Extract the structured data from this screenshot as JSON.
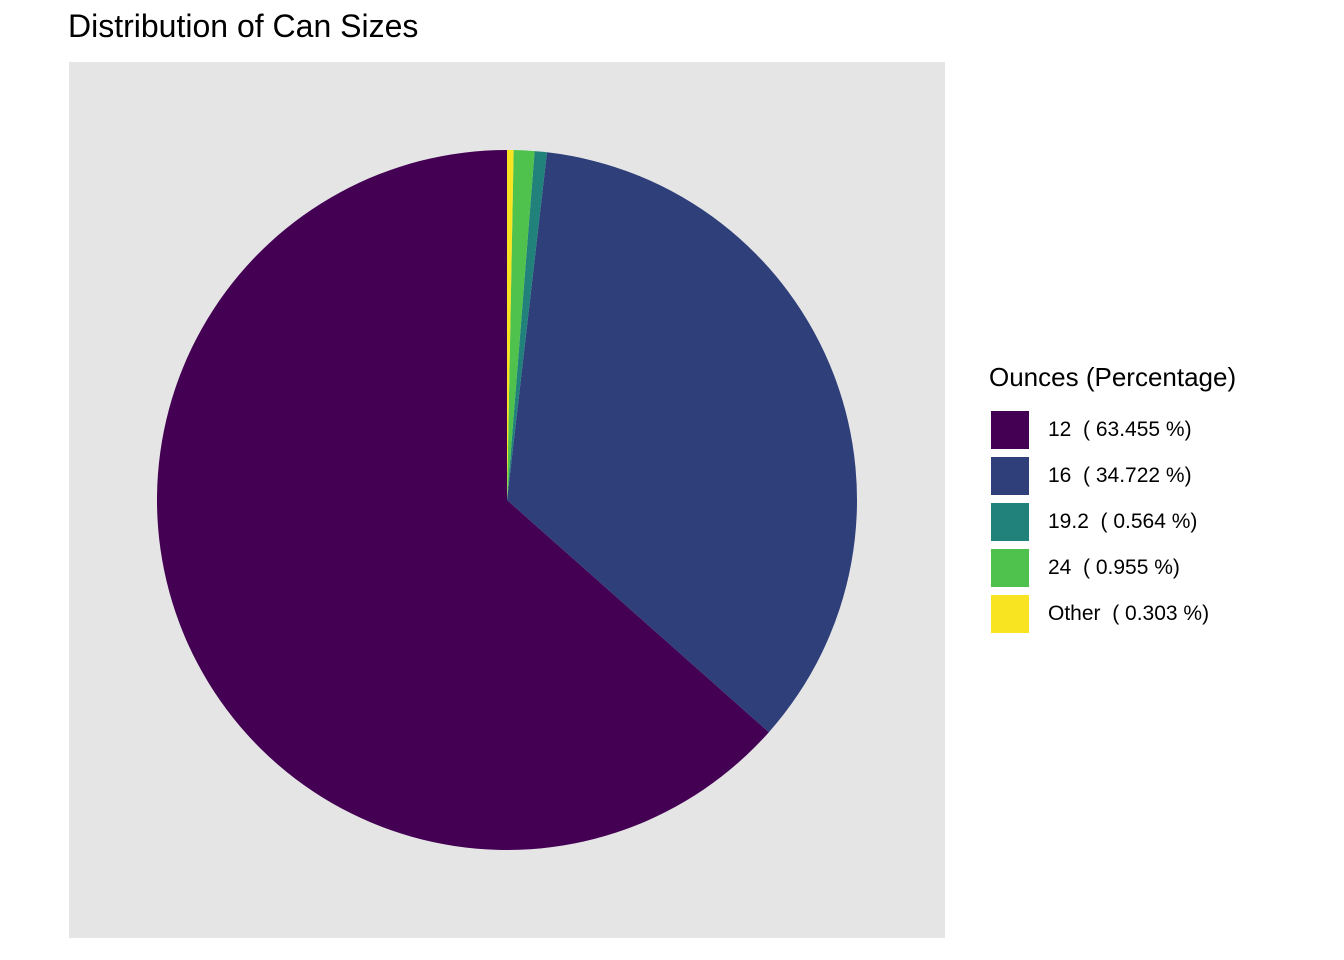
{
  "chart_data": {
    "type": "pie",
    "title": "Distribution of Can Sizes",
    "legend": {
      "title": "Ounces (Percentage)",
      "position": "right"
    },
    "slices": [
      {
        "label": "12  ( 63.455 %)",
        "category": "12",
        "value": 63.455,
        "color": "#440154"
      },
      {
        "label": "16  ( 34.722 %)",
        "category": "16",
        "value": 34.722,
        "color": "#2e3f79"
      },
      {
        "label": "19.2  ( 0.564 %)",
        "category": "19.2",
        "value": 0.564,
        "color": "#21817b"
      },
      {
        "label": "24  ( 0.955 %)",
        "category": "24",
        "value": 0.955,
        "color": "#4fc24e"
      },
      {
        "label": "Other  ( 0.303 %)",
        "category": "Other",
        "value": 0.303,
        "color": "#f8e421"
      }
    ],
    "panel_background": "#e5e5e5",
    "direction": "counterclockwise",
    "grid": false
  }
}
